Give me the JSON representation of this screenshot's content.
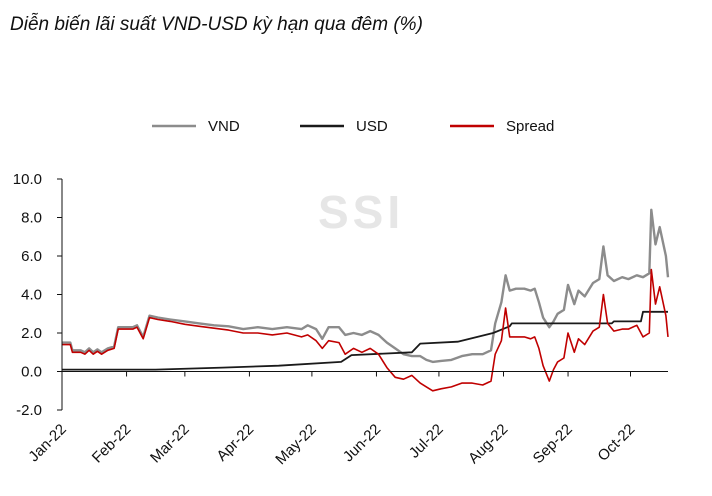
{
  "chart_data": {
    "type": "line",
    "title": "Diễn biến lãi suất VND-USD kỳ hạn qua đêm (%)",
    "watermark": "SSI",
    "xlabel": "",
    "ylabel": "",
    "ylim": [
      -2.0,
      10.0
    ],
    "y_ticks": [
      "10.0",
      "8.0",
      "6.0",
      "4.0",
      "2.0",
      "0.0",
      "-2.0"
    ],
    "y_tick_values": [
      10,
      8,
      6,
      4,
      2,
      0,
      -2
    ],
    "x_tick_labels": [
      "Jan-22",
      "Feb-22",
      "Mar-22",
      "Apr-22",
      "May-22",
      "Jun-22",
      "Jul-22",
      "Aug-22",
      "Sep-22",
      "Oct-22"
    ],
    "x_tick_dates": [
      "2022-01-01",
      "2022-02-01",
      "2022-03-01",
      "2022-04-01",
      "2022-05-01",
      "2022-06-01",
      "2022-07-01",
      "2022-08-01",
      "2022-09-01",
      "2022-10-01"
    ],
    "xlim": [
      "2022-01-01",
      "2022-10-19"
    ],
    "legend_position": "top",
    "grid": false,
    "series": [
      {
        "name": "VND",
        "color": "#8c8c8c",
        "points": [
          [
            "2022-01-01",
            1.5
          ],
          [
            "2022-01-05",
            1.5
          ],
          [
            "2022-01-06",
            1.1
          ],
          [
            "2022-01-10",
            1.1
          ],
          [
            "2022-01-12",
            1.0
          ],
          [
            "2022-01-14",
            1.2
          ],
          [
            "2022-01-16",
            1.0
          ],
          [
            "2022-01-18",
            1.15
          ],
          [
            "2022-01-20",
            1.0
          ],
          [
            "2022-01-23",
            1.2
          ],
          [
            "2022-01-26",
            1.3
          ],
          [
            "2022-01-28",
            2.3
          ],
          [
            "2022-02-04",
            2.3
          ],
          [
            "2022-02-06",
            2.4
          ],
          [
            "2022-02-09",
            1.8
          ],
          [
            "2022-02-12",
            2.9
          ],
          [
            "2022-02-16",
            2.8
          ],
          [
            "2022-02-22",
            2.7
          ],
          [
            "2022-03-01",
            2.6
          ],
          [
            "2022-03-08",
            2.5
          ],
          [
            "2022-03-15",
            2.4
          ],
          [
            "2022-03-22",
            2.35
          ],
          [
            "2022-03-29",
            2.2
          ],
          [
            "2022-04-05",
            2.3
          ],
          [
            "2022-04-12",
            2.2
          ],
          [
            "2022-04-19",
            2.3
          ],
          [
            "2022-04-26",
            2.2
          ],
          [
            "2022-04-29",
            2.4
          ],
          [
            "2022-05-03",
            2.2
          ],
          [
            "2022-05-06",
            1.7
          ],
          [
            "2022-05-09",
            2.3
          ],
          [
            "2022-05-14",
            2.3
          ],
          [
            "2022-05-17",
            1.9
          ],
          [
            "2022-05-21",
            2.0
          ],
          [
            "2022-05-25",
            1.9
          ],
          [
            "2022-05-29",
            2.1
          ],
          [
            "2022-06-02",
            1.9
          ],
          [
            "2022-06-06",
            1.5
          ],
          [
            "2022-06-10",
            1.2
          ],
          [
            "2022-06-14",
            0.9
          ],
          [
            "2022-06-18",
            0.8
          ],
          [
            "2022-06-22",
            0.8
          ],
          [
            "2022-06-25",
            0.6
          ],
          [
            "2022-06-28",
            0.5
          ],
          [
            "2022-07-02",
            0.55
          ],
          [
            "2022-07-07",
            0.6
          ],
          [
            "2022-07-12",
            0.8
          ],
          [
            "2022-07-17",
            0.9
          ],
          [
            "2022-07-22",
            0.9
          ],
          [
            "2022-07-26",
            1.1
          ],
          [
            "2022-07-28",
            2.5
          ],
          [
            "2022-07-31",
            3.6
          ],
          [
            "2022-08-02",
            5.0
          ],
          [
            "2022-08-04",
            4.2
          ],
          [
            "2022-08-07",
            4.3
          ],
          [
            "2022-08-11",
            4.3
          ],
          [
            "2022-08-14",
            4.2
          ],
          [
            "2022-08-16",
            4.3
          ],
          [
            "2022-08-18",
            3.6
          ],
          [
            "2022-08-20",
            2.8
          ],
          [
            "2022-08-23",
            2.3
          ],
          [
            "2022-08-25",
            2.6
          ],
          [
            "2022-08-27",
            3.0
          ],
          [
            "2022-08-30",
            3.2
          ],
          [
            "2022-09-01",
            4.5
          ],
          [
            "2022-09-04",
            3.5
          ],
          [
            "2022-09-06",
            4.2
          ],
          [
            "2022-09-09",
            3.9
          ],
          [
            "2022-09-13",
            4.6
          ],
          [
            "2022-09-16",
            4.8
          ],
          [
            "2022-09-18",
            6.5
          ],
          [
            "2022-09-20",
            5.0
          ],
          [
            "2022-09-23",
            4.7
          ],
          [
            "2022-09-27",
            4.9
          ],
          [
            "2022-09-30",
            4.8
          ],
          [
            "2022-10-04",
            5.0
          ],
          [
            "2022-10-07",
            4.9
          ],
          [
            "2022-10-10",
            5.1
          ],
          [
            "2022-10-11",
            8.4
          ],
          [
            "2022-10-13",
            6.6
          ],
          [
            "2022-10-15",
            7.5
          ],
          [
            "2022-10-18",
            6.0
          ],
          [
            "2022-10-19",
            4.9
          ]
        ]
      },
      {
        "name": "USD",
        "color": "#1a1a1a",
        "points": [
          [
            "2022-01-01",
            0.1
          ],
          [
            "2022-02-15",
            0.1
          ],
          [
            "2022-03-19",
            0.2
          ],
          [
            "2022-04-15",
            0.3
          ],
          [
            "2022-05-15",
            0.5
          ],
          [
            "2022-05-20",
            0.85
          ],
          [
            "2022-06-18",
            1.0
          ],
          [
            "2022-06-22",
            1.45
          ],
          [
            "2022-07-10",
            1.55
          ],
          [
            "2022-07-27",
            2.0
          ],
          [
            "2022-08-04",
            2.35
          ],
          [
            "2022-08-05",
            2.5
          ],
          [
            "2022-09-22",
            2.5
          ],
          [
            "2022-09-23",
            2.6
          ],
          [
            "2022-10-06",
            2.6
          ],
          [
            "2022-10-07",
            3.1
          ],
          [
            "2022-10-19",
            3.1
          ]
        ]
      },
      {
        "name": "Spread",
        "color": "#c00000",
        "points": [
          [
            "2022-01-01",
            1.4
          ],
          [
            "2022-01-05",
            1.4
          ],
          [
            "2022-01-06",
            1.0
          ],
          [
            "2022-01-10",
            1.0
          ],
          [
            "2022-01-12",
            0.9
          ],
          [
            "2022-01-14",
            1.1
          ],
          [
            "2022-01-16",
            0.9
          ],
          [
            "2022-01-18",
            1.05
          ],
          [
            "2022-01-20",
            0.9
          ],
          [
            "2022-01-23",
            1.1
          ],
          [
            "2022-01-26",
            1.2
          ],
          [
            "2022-01-28",
            2.2
          ],
          [
            "2022-02-04",
            2.2
          ],
          [
            "2022-02-06",
            2.3
          ],
          [
            "2022-02-09",
            1.7
          ],
          [
            "2022-02-12",
            2.8
          ],
          [
            "2022-02-16",
            2.7
          ],
          [
            "2022-02-22",
            2.6
          ],
          [
            "2022-03-01",
            2.45
          ],
          [
            "2022-03-08",
            2.35
          ],
          [
            "2022-03-15",
            2.25
          ],
          [
            "2022-03-22",
            2.15
          ],
          [
            "2022-03-29",
            2.0
          ],
          [
            "2022-04-05",
            2.0
          ],
          [
            "2022-04-12",
            1.9
          ],
          [
            "2022-04-19",
            2.0
          ],
          [
            "2022-04-26",
            1.8
          ],
          [
            "2022-04-29",
            1.9
          ],
          [
            "2022-05-03",
            1.6
          ],
          [
            "2022-05-06",
            1.2
          ],
          [
            "2022-05-09",
            1.6
          ],
          [
            "2022-05-14",
            1.5
          ],
          [
            "2022-05-17",
            0.9
          ],
          [
            "2022-05-21",
            1.2
          ],
          [
            "2022-05-25",
            1.0
          ],
          [
            "2022-05-29",
            1.2
          ],
          [
            "2022-06-02",
            0.9
          ],
          [
            "2022-06-06",
            0.2
          ],
          [
            "2022-06-10",
            -0.3
          ],
          [
            "2022-06-14",
            -0.4
          ],
          [
            "2022-06-18",
            -0.2
          ],
          [
            "2022-06-22",
            -0.6
          ],
          [
            "2022-06-25",
            -0.8
          ],
          [
            "2022-06-28",
            -1.0
          ],
          [
            "2022-07-02",
            -0.9
          ],
          [
            "2022-07-07",
            -0.8
          ],
          [
            "2022-07-12",
            -0.6
          ],
          [
            "2022-07-17",
            -0.6
          ],
          [
            "2022-07-22",
            -0.7
          ],
          [
            "2022-07-26",
            -0.5
          ],
          [
            "2022-07-28",
            0.9
          ],
          [
            "2022-07-31",
            1.6
          ],
          [
            "2022-08-02",
            3.3
          ],
          [
            "2022-08-04",
            1.8
          ],
          [
            "2022-08-07",
            1.8
          ],
          [
            "2022-08-11",
            1.8
          ],
          [
            "2022-08-14",
            1.7
          ],
          [
            "2022-08-16",
            1.8
          ],
          [
            "2022-08-18",
            1.2
          ],
          [
            "2022-08-20",
            0.3
          ],
          [
            "2022-08-23",
            -0.5
          ],
          [
            "2022-08-25",
            0.1
          ],
          [
            "2022-08-27",
            0.5
          ],
          [
            "2022-08-30",
            0.7
          ],
          [
            "2022-09-01",
            2.0
          ],
          [
            "2022-09-04",
            1.0
          ],
          [
            "2022-09-06",
            1.7
          ],
          [
            "2022-09-09",
            1.4
          ],
          [
            "2022-09-13",
            2.1
          ],
          [
            "2022-09-16",
            2.3
          ],
          [
            "2022-09-18",
            4.0
          ],
          [
            "2022-09-20",
            2.5
          ],
          [
            "2022-09-23",
            2.1
          ],
          [
            "2022-09-27",
            2.2
          ],
          [
            "2022-09-30",
            2.2
          ],
          [
            "2022-10-04",
            2.4
          ],
          [
            "2022-10-07",
            1.8
          ],
          [
            "2022-10-10",
            2.0
          ],
          [
            "2022-10-11",
            5.3
          ],
          [
            "2022-10-13",
            3.5
          ],
          [
            "2022-10-15",
            4.4
          ],
          [
            "2022-10-18",
            2.9
          ],
          [
            "2022-10-19",
            1.8
          ]
        ]
      }
    ]
  }
}
